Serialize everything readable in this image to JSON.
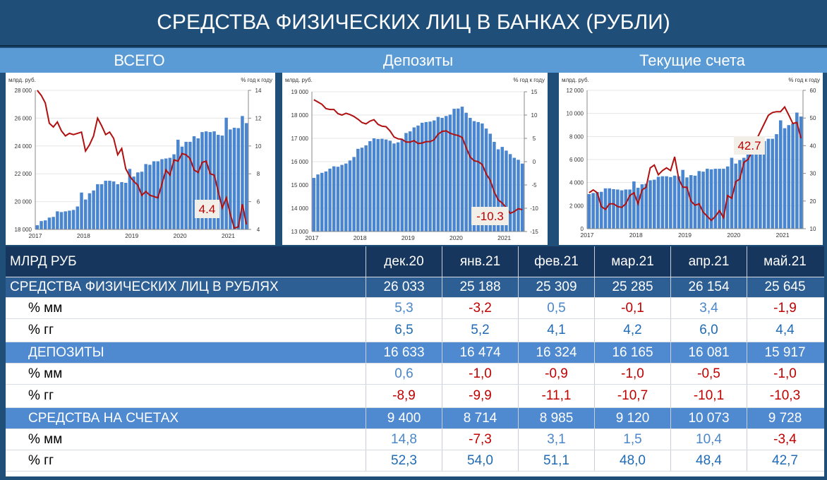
{
  "title": "СРЕДСТВА ФИЗИЧЕСКИХ ЛИЦ В БАНКАХ (РУБЛИ)",
  "sections": [
    "ВСЕГО",
    "Депозиты",
    "Текущие счета"
  ],
  "colors": {
    "bars": "#4a86d0",
    "line": "#b01010",
    "header": "#1f4e79",
    "subheader": "#5b9bd5"
  },
  "chart_data": [
    {
      "type": "bar+line",
      "title": "ВСЕГО",
      "ylabel": "млрд. руб.",
      "y2label": "% год к году",
      "ylim": [
        18000,
        28000
      ],
      "y2lim": [
        4,
        15
      ],
      "yticks": [
        "18 000",
        "20 000",
        "22 000",
        "24 000",
        "26 000",
        "28 000"
      ],
      "y2ticks": [
        "4",
        "6",
        "8",
        "10",
        "12",
        "14"
      ],
      "xticks": [
        "2017",
        "2018",
        "2019",
        "2020",
        "2021"
      ],
      "annotation": "4.4",
      "grid": true,
      "bars": [
        18300,
        18600,
        18650,
        18850,
        18900,
        19300,
        19250,
        19300,
        19350,
        19400,
        19650,
        20650,
        20150,
        20600,
        20800,
        21250,
        21250,
        21500,
        21500,
        21450,
        21250,
        21400,
        21350,
        22350,
        21800,
        22100,
        22150,
        22700,
        22650,
        22900,
        22900,
        23050,
        23100,
        23150,
        23400,
        24450,
        23950,
        24300,
        24300,
        24700,
        24550,
        25000,
        25050,
        25000,
        25050,
        24800,
        24750,
        26033,
        25188,
        25309,
        25285,
        26154,
        25645
      ],
      "line": [
        15,
        14.6,
        14,
        12.4,
        12.1,
        12.5,
        11.8,
        11.4,
        11.6,
        11.5,
        11.6,
        11.7,
        10.2,
        10.7,
        11.4,
        12.8,
        12.2,
        11.5,
        11.7,
        11.2,
        9.9,
        10.4,
        8.8,
        8.2,
        7.8,
        7.5,
        6.7,
        7.0,
        6.7,
        6.6,
        6.5,
        7.6,
        8.7,
        8.3,
        9.5,
        9.4,
        10.0,
        9.9,
        9.6,
        8.7,
        8.5,
        9.3,
        9.4,
        8.4,
        8.3,
        7.0,
        5.7,
        6.5,
        5.2,
        4.1,
        4.2,
        6.0,
        4.4
      ]
    },
    {
      "type": "bar+line",
      "title": "Депозиты",
      "ylabel": "млрд. руб.",
      "y2label": "% год к году",
      "ylim": [
        13000,
        19000
      ],
      "y2lim": [
        -15,
        15
      ],
      "yticks": [
        "13 000",
        "14 000",
        "15 000",
        "16 000",
        "17 000",
        "18 000",
        "19 000"
      ],
      "y2ticks": [
        "-15",
        "-10",
        "-5",
        "0",
        "5",
        "10",
        "15"
      ],
      "xticks": [
        "2017",
        "2018",
        "2019",
        "2020",
        "2021"
      ],
      "annotation": "-10.3",
      "grid": true,
      "bars": [
        15300,
        15450,
        15520,
        15580,
        15700,
        15800,
        15780,
        15860,
        15920,
        16050,
        16200,
        16550,
        16600,
        16700,
        16880,
        17000,
        16970,
        16980,
        16950,
        16900,
        16780,
        16830,
        16950,
        17230,
        17300,
        17470,
        17550,
        17670,
        17700,
        17720,
        17770,
        17920,
        17880,
        17960,
        18020,
        18270,
        18280,
        18360,
        18100,
        17880,
        17740,
        17700,
        17640,
        17420,
        17200,
        16850,
        16530,
        16633,
        16474,
        16324,
        16165,
        16081,
        15917
      ],
      "line": [
        13.3,
        12.8,
        12.3,
        11.4,
        11.2,
        11.2,
        10.3,
        10.0,
        10.4,
        10.1,
        9.7,
        9.1,
        8.4,
        8.1,
        8.7,
        9.0,
        8.0,
        7.6,
        7.5,
        6.6,
        5.3,
        4.9,
        4.8,
        4.2,
        4.2,
        4.5,
        3.9,
        4.0,
        4.3,
        4.3,
        4.7,
        5.9,
        6.5,
        6.6,
        6.1,
        5.8,
        5.6,
        5.2,
        3.0,
        1.0,
        0.2,
        0.0,
        -0.6,
        -2.6,
        -4.0,
        -6.5,
        -8.2,
        -8.9,
        -9.9,
        -11.1,
        -10.7,
        -10.1,
        -10.3
      ]
    },
    {
      "type": "bar+line",
      "title": "Текущие счета",
      "ylabel": "млрд. руб.",
      "y2label": "% год к году",
      "ylim": [
        0,
        12000
      ],
      "y2lim": [
        10,
        60
      ],
      "yticks": [
        "0",
        "2 000",
        "4 000",
        "6 000",
        "8 000",
        "10 000",
        "12 000"
      ],
      "y2ticks": [
        "10",
        "20",
        "30",
        "40",
        "50",
        "60"
      ],
      "xticks": [
        "2017",
        "2018",
        "2019",
        "2020",
        "2021"
      ],
      "annotation": "42.7",
      "grid": true,
      "bars": [
        3000,
        3100,
        3180,
        3200,
        3500,
        3500,
        3430,
        3400,
        3330,
        3400,
        3400,
        4100,
        3550,
        3850,
        3900,
        4200,
        4250,
        4500,
        4550,
        4550,
        4480,
        4600,
        4550,
        5100,
        4450,
        4650,
        4600,
        5000,
        4950,
        5200,
        5150,
        5200,
        5200,
        5200,
        5400,
        6150,
        5650,
        5950,
        6150,
        6800,
        7050,
        7300,
        7420,
        7600,
        7800,
        7800,
        8200,
        9400,
        8714,
        8985,
        9120,
        10073,
        9728
      ],
      "line": [
        23,
        24,
        23,
        18,
        17,
        19,
        19,
        18,
        17.7,
        19,
        22,
        23,
        19,
        24,
        25,
        32,
        33,
        29.5,
        31,
        32,
        31,
        36,
        28,
        25,
        25,
        20,
        18.5,
        19,
        16,
        14.5,
        13,
        14.5,
        16.5,
        14,
        22,
        21,
        27,
        28,
        34,
        35,
        38,
        42,
        45,
        48,
        51,
        52,
        52.3,
        52.3,
        54.0,
        51.1,
        48.0,
        48.4,
        42.7
      ]
    }
  ],
  "table": {
    "header": {
      "label": "МЛРД РУБ",
      "months": [
        "дек.20",
        "янв.21",
        "фев.21",
        "мар.21",
        "апр.21",
        "май.21"
      ]
    },
    "rows": [
      {
        "label": "СРЕДСТВА ФИЗИЧЕСКИХ ЛИЦ В РУБЛЯХ",
        "kind": "main",
        "values": [
          "26 033",
          "25 188",
          "25 309",
          "25 285",
          "26 154",
          "25 645"
        ]
      },
      {
        "label": "% мм",
        "kind": "mm",
        "values": [
          "5,3",
          "-3,2",
          "0,5",
          "-0,1",
          "3,4",
          "-1,9"
        ]
      },
      {
        "label": "% гг",
        "kind": "yy",
        "values": [
          "6,5",
          "5,2",
          "4,1",
          "4,2",
          "6,0",
          "4,4"
        ]
      },
      {
        "label": "ДЕПОЗИТЫ",
        "kind": "sec",
        "values": [
          "16 633",
          "16 474",
          "16 324",
          "16 165",
          "16 081",
          "15 917"
        ]
      },
      {
        "label": "% мм",
        "kind": "mm",
        "values": [
          "0,6",
          "-1,0",
          "-0,9",
          "-1,0",
          "-0,5",
          "-1,0"
        ]
      },
      {
        "label": "% гг",
        "kind": "yy",
        "values": [
          "-8,9",
          "-9,9",
          "-11,1",
          "-10,7",
          "-10,1",
          "-10,3"
        ]
      },
      {
        "label": "СРЕДСТВА НА СЧЕТАХ",
        "kind": "sec",
        "values": [
          "9 400",
          "8 714",
          "8 985",
          "9 120",
          "10 073",
          "9 728"
        ]
      },
      {
        "label": "% мм",
        "kind": "mm",
        "values": [
          "14,8",
          "-7,3",
          "3,1",
          "1,5",
          "10,4",
          "-3,4"
        ]
      },
      {
        "label": "% гг",
        "kind": "yy",
        "values": [
          "52,3",
          "54,0",
          "51,1",
          "48,0",
          "48,4",
          "42,7"
        ]
      }
    ]
  }
}
